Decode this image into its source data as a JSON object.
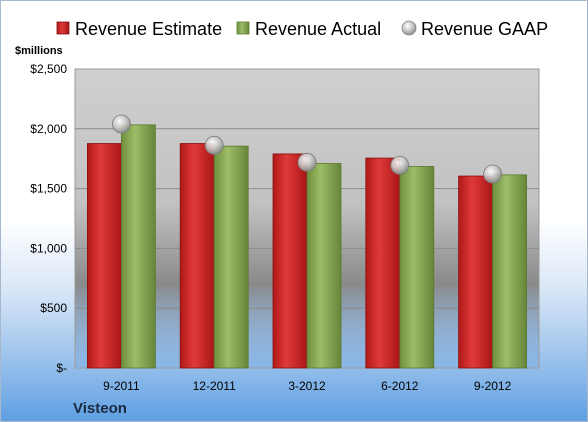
{
  "chart_data": {
    "type": "bar",
    "categories": [
      "9-2011",
      "12-2011",
      "3-2012",
      "6-2012",
      "9-2012"
    ],
    "series": [
      {
        "name": "Revenue Estimate",
        "values": [
          1877,
          1877,
          1790,
          1755,
          1605
        ],
        "color": "#d42a2a"
      },
      {
        "name": "Revenue Actual",
        "values": [
          2033,
          1855,
          1710,
          1685,
          1615
        ],
        "color": "#8fb05a"
      },
      {
        "name": "Revenue GAAP",
        "values": [
          2040,
          1862,
          1720,
          1695,
          1622
        ],
        "color": "#c7c7c7",
        "marker": "circle"
      }
    ],
    "ylabel": "$millions",
    "ylim": [
      0,
      2500
    ],
    "yticks": [
      0,
      500,
      1000,
      1500,
      2000,
      2500
    ],
    "ytick_labels": [
      "$-",
      "$500",
      "$1,000",
      "$1,500",
      "$2,000",
      "$2,500"
    ],
    "grid": true,
    "legend_position": "top"
  },
  "company": "Visteon"
}
